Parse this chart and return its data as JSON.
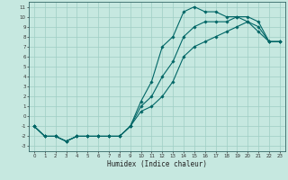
{
  "title": "",
  "xlabel": "Humidex (Indice chaleur)",
  "ylabel": "",
  "background_color": "#c6e8e0",
  "grid_color": "#9ecec4",
  "line_color": "#006666",
  "xlim": [
    -0.5,
    23.5
  ],
  "ylim": [
    -3.5,
    11.5
  ],
  "xticks": [
    0,
    1,
    2,
    3,
    4,
    5,
    6,
    7,
    8,
    9,
    10,
    11,
    12,
    13,
    14,
    15,
    16,
    17,
    18,
    19,
    20,
    21,
    22,
    23
  ],
  "yticks": [
    -3,
    -2,
    -1,
    0,
    1,
    2,
    3,
    4,
    5,
    6,
    7,
    8,
    9,
    10,
    11
  ],
  "line1_x": [
    0,
    1,
    2,
    3,
    4,
    5,
    6,
    7,
    8,
    9,
    10,
    11,
    12,
    13,
    14,
    15,
    16,
    17,
    18,
    19,
    20,
    21,
    22,
    23
  ],
  "line1_y": [
    -1,
    -2,
    -2,
    -2.5,
    -2,
    -2,
    -2,
    -2,
    -2,
    -1,
    1.5,
    3.5,
    7,
    8,
    10.5,
    11,
    10.5,
    10.5,
    10,
    10,
    9.5,
    8.5,
    7.5,
    7.5
  ],
  "line2_x": [
    0,
    1,
    2,
    3,
    4,
    5,
    6,
    7,
    8,
    9,
    10,
    11,
    12,
    13,
    14,
    15,
    16,
    17,
    18,
    19,
    20,
    21,
    22,
    23
  ],
  "line2_y": [
    -1,
    -2,
    -2,
    -2.5,
    -2,
    -2,
    -2,
    -2,
    -2,
    -1,
    1,
    2,
    4,
    5.5,
    8,
    9,
    9.5,
    9.5,
    9.5,
    10,
    10,
    9.5,
    7.5,
    7.5
  ],
  "line3_x": [
    0,
    1,
    2,
    3,
    4,
    5,
    6,
    7,
    8,
    9,
    10,
    11,
    12,
    13,
    14,
    15,
    16,
    17,
    18,
    19,
    20,
    21,
    22,
    23
  ],
  "line3_y": [
    -1,
    -2,
    -2,
    -2.5,
    -2,
    -2,
    -2,
    -2,
    -2,
    -1,
    0.5,
    1,
    2,
    3.5,
    6,
    7,
    7.5,
    8,
    8.5,
    9,
    9.5,
    9,
    7.5,
    7.5
  ],
  "tick_fontsize": 4.0,
  "xlabel_fontsize": 5.5
}
